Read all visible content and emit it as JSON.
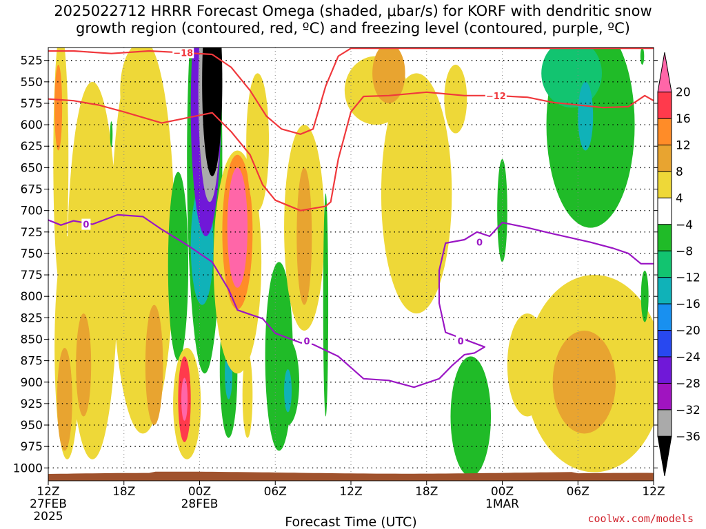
{
  "chart_data": {
    "type": "heatmap",
    "title_line1": "2025022712 HRRR Forecast Omega (shaded, μbar/s) for KORF with dendritic snow",
    "title_line2": "growth region (contoured, red, ºC) and freezing level (contoured, purple, ºC)",
    "xlabel": "Forecast Time (UTC)",
    "x_ticks": [
      {
        "hour": 0,
        "label": "12Z",
        "sub1": "27FEB",
        "sub2": "2025"
      },
      {
        "hour": 6,
        "label": "18Z",
        "sub1": "",
        "sub2": ""
      },
      {
        "hour": 12,
        "label": "00Z",
        "sub1": "28FEB",
        "sub2": ""
      },
      {
        "hour": 18,
        "label": "06Z",
        "sub1": "",
        "sub2": ""
      },
      {
        "hour": 24,
        "label": "12Z",
        "sub1": "",
        "sub2": ""
      },
      {
        "hour": 30,
        "label": "18Z",
        "sub1": "",
        "sub2": ""
      },
      {
        "hour": 36,
        "label": "00Z",
        "sub1": "1MAR",
        "sub2": ""
      },
      {
        "hour": 42,
        "label": "06Z",
        "sub1": "",
        "sub2": ""
      },
      {
        "hour": 48,
        "label": "12Z",
        "sub1": "",
        "sub2": ""
      }
    ],
    "x_range": [
      0,
      48
    ],
    "y_ticks": [
      525,
      550,
      575,
      600,
      625,
      650,
      675,
      700,
      725,
      750,
      775,
      800,
      825,
      850,
      875,
      900,
      925,
      950,
      975,
      1000
    ],
    "y_range": [
      510,
      1015
    ],
    "grid": true,
    "colorbar": {
      "labels": [
        "20",
        "16",
        "12",
        "8",
        "4",
        "−4",
        "−8",
        "−12",
        "−16",
        "−20",
        "−24",
        "−28",
        "−32",
        "−36"
      ],
      "colors": [
        "#ff66a8",
        "#ff3a4c",
        "#ff8c28",
        "#e8a430",
        "#eed838",
        "#ffffff",
        "#20bb28",
        "#12c470",
        "#10b2b8",
        "#1890f0",
        "#2848f0",
        "#7018d8",
        "#a014c0",
        "#aaaaaa",
        "#000000"
      ]
    },
    "ground_color": "#a0522d",
    "omega_blobs": [
      {
        "h": 1.0,
        "p": 640,
        "rx": 0.6,
        "ry": 150,
        "color": "#eed838"
      },
      {
        "h": 0.8,
        "p": 580,
        "rx": 0.3,
        "ry": 50,
        "color": "#ff8c28"
      },
      {
        "h": 1.5,
        "p": 860,
        "rx": 1.0,
        "ry": 130,
        "color": "#eed838"
      },
      {
        "h": 1.3,
        "p": 920,
        "rx": 0.6,
        "ry": 60,
        "color": "#e8a430"
      },
      {
        "h": 3.5,
        "p": 770,
        "rx": 2.0,
        "ry": 220,
        "color": "#eed838"
      },
      {
        "h": 2.8,
        "p": 880,
        "rx": 0.6,
        "ry": 60,
        "color": "#e8a430"
      },
      {
        "h": 7.5,
        "p": 730,
        "rx": 2.5,
        "ry": 230,
        "color": "#eed838"
      },
      {
        "h": 8.4,
        "p": 880,
        "rx": 0.7,
        "ry": 70,
        "color": "#e8a430"
      },
      {
        "h": 7.3,
        "p": 560,
        "rx": 1.6,
        "ry": 55,
        "color": "#eed838"
      },
      {
        "h": 10.3,
        "p": 765,
        "rx": 0.8,
        "ry": 110,
        "color": "#20bb28"
      },
      {
        "h": 11.0,
        "p": 925,
        "rx": 1.1,
        "ry": 65,
        "color": "#eed838"
      },
      {
        "h": 10.8,
        "p": 920,
        "rx": 0.5,
        "ry": 50,
        "color": "#ff3a4c"
      },
      {
        "h": 10.8,
        "p": 920,
        "rx": 0.25,
        "ry": 25,
        "color": "#ff66a8"
      },
      {
        "h": 12.4,
        "p": 640,
        "rx": 1.4,
        "ry": 250,
        "color": "#20bb28"
      },
      {
        "h": 12.2,
        "p": 740,
        "rx": 0.9,
        "ry": 70,
        "color": "#10b2b8"
      },
      {
        "h": 12.5,
        "p": 580,
        "rx": 1.2,
        "ry": 150,
        "color": "#7018d8"
      },
      {
        "h": 12.8,
        "p": 560,
        "rx": 0.9,
        "ry": 130,
        "color": "#aaaaaa"
      },
      {
        "h": 13.0,
        "p": 550,
        "rx": 0.8,
        "ry": 110,
        "color": "#000000"
      },
      {
        "h": 14.3,
        "p": 885,
        "rx": 0.7,
        "ry": 80,
        "color": "#20bb28"
      },
      {
        "h": 14.3,
        "p": 890,
        "rx": 0.3,
        "ry": 30,
        "color": "#10b2b8"
      },
      {
        "h": 15.0,
        "p": 760,
        "rx": 1.9,
        "ry": 130,
        "color": "#eed838"
      },
      {
        "h": 15.0,
        "p": 725,
        "rx": 1.2,
        "ry": 90,
        "color": "#ff8c28"
      },
      {
        "h": 15.0,
        "p": 720,
        "rx": 0.8,
        "ry": 70,
        "color": "#ff66a8"
      },
      {
        "h": 15.8,
        "p": 915,
        "rx": 0.4,
        "ry": 50,
        "color": "#eed838"
      },
      {
        "h": 16.6,
        "p": 620,
        "rx": 0.9,
        "ry": 80,
        "color": "#eed838"
      },
      {
        "h": 18.3,
        "p": 870,
        "rx": 1.1,
        "ry": 110,
        "color": "#20bb28"
      },
      {
        "h": 19.0,
        "p": 900,
        "rx": 0.9,
        "ry": 50,
        "color": "#20bb28"
      },
      {
        "h": 19.0,
        "p": 910,
        "rx": 0.3,
        "ry": 25,
        "color": "#10b2b8"
      },
      {
        "h": 20.3,
        "p": 720,
        "rx": 1.6,
        "ry": 120,
        "color": "#eed838"
      },
      {
        "h": 20.3,
        "p": 730,
        "rx": 0.6,
        "ry": 80,
        "color": "#e8a430"
      },
      {
        "h": 22.0,
        "p": 810,
        "rx": 0.2,
        "ry": 130,
        "color": "#20bb28"
      },
      {
        "h": 26.0,
        "p": 560,
        "rx": 2.5,
        "ry": 40,
        "color": "#eed838"
      },
      {
        "h": 29.2,
        "p": 680,
        "rx": 2.8,
        "ry": 140,
        "color": "#eed838"
      },
      {
        "h": 27.0,
        "p": 540,
        "rx": 1.3,
        "ry": 35,
        "color": "#e8a430"
      },
      {
        "h": 32.3,
        "p": 570,
        "rx": 0.9,
        "ry": 40,
        "color": "#eed838"
      },
      {
        "h": 33.5,
        "p": 940,
        "rx": 1.6,
        "ry": 70,
        "color": "#20bb28"
      },
      {
        "h": 36.0,
        "p": 700,
        "rx": 0.4,
        "ry": 60,
        "color": "#20bb28"
      },
      {
        "h": 43.0,
        "p": 600,
        "rx": 3.5,
        "ry": 120,
        "color": "#20bb28"
      },
      {
        "h": 41.5,
        "p": 540,
        "rx": 2.4,
        "ry": 40,
        "color": "#12c470"
      },
      {
        "h": 42.6,
        "p": 590,
        "rx": 0.6,
        "ry": 40,
        "color": "#10b2b8"
      },
      {
        "h": 43.3,
        "p": 890,
        "rx": 5.5,
        "ry": 115,
        "color": "#eed838"
      },
      {
        "h": 42.5,
        "p": 900,
        "rx": 2.5,
        "ry": 60,
        "color": "#e8a430"
      },
      {
        "h": 38.0,
        "p": 880,
        "rx": 1.6,
        "ry": 60,
        "color": "#eed838"
      },
      {
        "h": 47.3,
        "p": 800,
        "rx": 0.3,
        "ry": 30,
        "color": "#20bb28"
      },
      {
        "h": 47.1,
        "p": 520,
        "rx": 0.15,
        "ry": 10,
        "color": "#20bb28"
      },
      {
        "h": 5.0,
        "p": 611,
        "rx": 0.1,
        "ry": 15,
        "color": "#20bb28"
      }
    ],
    "dgz_contours": [
      {
        "label": "−18",
        "label_at": [
          10.7,
          516
        ],
        "points": [
          [
            0,
            514
          ],
          [
            2,
            514
          ],
          [
            5,
            517
          ],
          [
            8,
            514
          ],
          [
            10.7,
            516
          ],
          [
            13,
            518
          ],
          [
            14.5,
            533
          ],
          [
            16,
            560
          ],
          [
            17.3,
            590
          ],
          [
            18.5,
            605
          ],
          [
            20,
            611
          ],
          [
            21,
            605
          ],
          [
            22,
            555
          ],
          [
            23,
            520
          ],
          [
            24,
            511
          ],
          [
            26.8,
            511
          ],
          [
            30,
            511
          ],
          [
            33,
            511
          ],
          [
            36,
            511
          ],
          [
            48,
            511
          ]
        ]
      },
      {
        "label": "−12",
        "label_at": [
          35.5,
          566
        ],
        "points": [
          [
            0,
            570
          ],
          [
            2,
            572
          ],
          [
            4,
            577
          ],
          [
            6,
            585
          ],
          [
            9,
            598
          ],
          [
            11,
            592
          ],
          [
            13,
            586
          ],
          [
            14.5,
            608
          ],
          [
            16,
            635
          ],
          [
            17,
            670
          ],
          [
            18,
            688
          ],
          [
            20,
            700
          ],
          [
            22,
            695
          ],
          [
            22.4,
            690
          ],
          [
            23,
            640
          ],
          [
            24,
            585
          ],
          [
            25,
            567
          ],
          [
            27,
            566
          ],
          [
            30,
            562
          ],
          [
            33,
            566
          ],
          [
            35.5,
            566
          ],
          [
            38,
            568
          ],
          [
            40,
            574
          ],
          [
            44,
            580
          ],
          [
            46,
            579
          ],
          [
            47.3,
            566
          ],
          [
            48,
            572
          ]
        ]
      }
    ],
    "freezing_contours": [
      {
        "label": "0",
        "label_at": [
          3.0,
          716
        ],
        "points": [
          [
            0,
            711
          ],
          [
            1,
            717
          ],
          [
            2,
            712
          ],
          [
            3.5,
            716
          ],
          [
            5.5,
            705
          ],
          [
            7.5,
            707
          ],
          [
            9,
            722
          ],
          [
            11,
            740
          ],
          [
            13,
            760
          ],
          [
            14.3,
            792
          ],
          [
            15,
            816
          ],
          [
            16,
            821
          ],
          [
            17,
            826
          ],
          [
            18,
            843
          ],
          [
            20,
            854
          ],
          [
            21,
            856
          ],
          [
            23,
            870
          ],
          [
            25,
            896
          ],
          [
            27,
            898
          ],
          [
            29,
            906
          ],
          [
            31,
            896
          ],
          [
            32,
            881
          ],
          [
            33,
            868
          ],
          [
            33.8,
            866
          ],
          [
            34.6,
            859
          ],
          [
            33.5,
            853
          ],
          [
            31.5,
            842
          ],
          [
            31,
            808
          ],
          [
            31,
            770
          ],
          [
            31.5,
            738
          ],
          [
            33,
            734
          ],
          [
            34,
            725
          ],
          [
            35,
            730
          ],
          [
            36,
            714
          ],
          [
            38,
            720
          ],
          [
            40,
            727
          ],
          [
            43,
            737
          ],
          [
            44.8,
            744
          ],
          [
            46,
            750
          ],
          [
            47,
            762
          ],
          [
            48,
            762
          ]
        ]
      }
    ],
    "contour_labels_extra": [
      {
        "text": "0",
        "at": [
          20.5,
          852
        ]
      },
      {
        "text": "0",
        "at": [
          32.7,
          852
        ]
      },
      {
        "text": "0",
        "at": [
          34.2,
          737
        ]
      }
    ]
  },
  "credit": "coolwx.com/models"
}
